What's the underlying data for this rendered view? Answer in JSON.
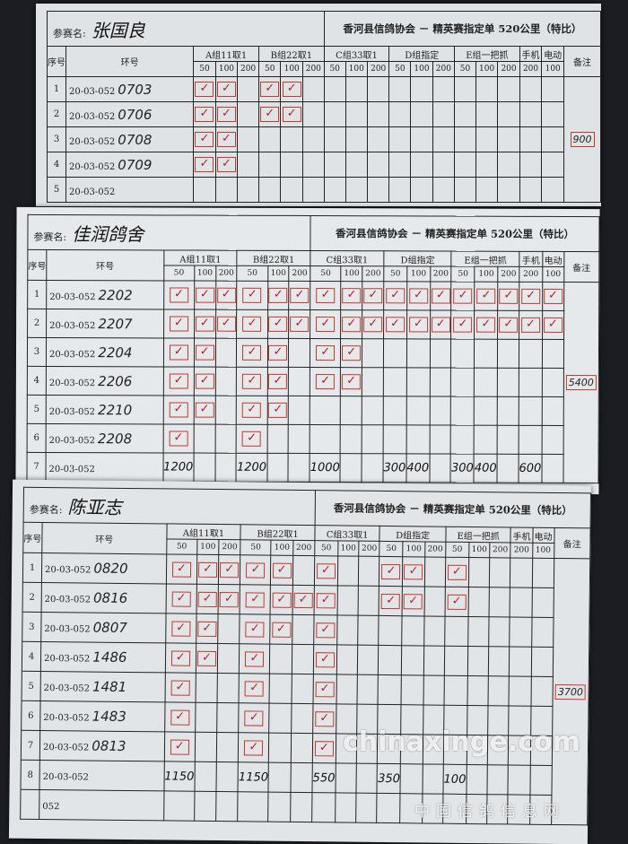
{
  "header": {
    "name_label": "参赛名:",
    "title": "香河县信鸽协会 － 精英赛指定单 520公里（特比）",
    "seq_label": "序号",
    "ring_label": "环号",
    "remark_label": "备注",
    "groups": [
      "A组11取1",
      "B组22取1",
      "C组33取1",
      "D组指定",
      "E组一把抓",
      "手机",
      "电动"
    ],
    "distances": [
      "50",
      "100",
      "200",
      "50",
      "100",
      "200",
      "50",
      "100",
      "200",
      "50",
      "100",
      "200",
      "50",
      "100",
      "200",
      "200",
      "100"
    ]
  },
  "mark_symbol": "✓",
  "mark_color": "#c0392b",
  "sheets": [
    {
      "participant": "张国良",
      "remark": "900",
      "rows": [
        {
          "seq": "1",
          "prefix": "20-03-052",
          "ring": "0703",
          "marks": [
            0,
            1,
            3,
            4
          ]
        },
        {
          "seq": "2",
          "prefix": "20-03-052",
          "ring": "0706",
          "marks": [
            0,
            1,
            3,
            4
          ]
        },
        {
          "seq": "3",
          "prefix": "20-03-052",
          "ring": "0708",
          "marks": [
            0,
            1
          ]
        },
        {
          "seq": "4",
          "prefix": "20-03-052",
          "ring": "0709",
          "marks": [
            0,
            1
          ]
        },
        {
          "seq": "5",
          "prefix": "20-03-052",
          "ring": "",
          "marks": []
        }
      ]
    },
    {
      "participant": "佳润鸽舍",
      "remark": "5400",
      "rows": [
        {
          "seq": "1",
          "prefix": "20-03-052",
          "ring": "2202",
          "marks": [
            0,
            1,
            2,
            3,
            4,
            5,
            6,
            7,
            8,
            9,
            10,
            11,
            12,
            13,
            14,
            15,
            16
          ]
        },
        {
          "seq": "2",
          "prefix": "20-03-052",
          "ring": "2207",
          "marks": [
            0,
            1,
            2,
            3,
            4,
            5,
            6,
            7,
            8,
            9,
            10,
            11,
            12,
            13,
            14,
            15,
            16
          ]
        },
        {
          "seq": "3",
          "prefix": "20-03-052",
          "ring": "2204",
          "marks": [
            0,
            1,
            3,
            4,
            6,
            7
          ]
        },
        {
          "seq": "4",
          "prefix": "20-03-052",
          "ring": "2206",
          "marks": [
            0,
            1,
            3,
            4,
            6,
            7
          ]
        },
        {
          "seq": "5",
          "prefix": "20-03-052",
          "ring": "2210",
          "marks": [
            0,
            1,
            3,
            4
          ]
        },
        {
          "seq": "6",
          "prefix": "20-03-052",
          "ring": "2208",
          "marks": [
            0,
            3
          ]
        },
        {
          "seq": "7",
          "prefix": "20-03-052",
          "ring": "",
          "marks": [],
          "totals": {
            "0": "1200",
            "3": "1200",
            "6": "1000",
            "9": "300",
            "10": "400",
            "12": "300",
            "13": "400",
            "15": "600"
          }
        }
      ]
    },
    {
      "participant": "陈亚志",
      "remark": "3700",
      "rows": [
        {
          "seq": "1",
          "prefix": "20-03-052",
          "ring": "0820",
          "marks": [
            0,
            1,
            2,
            3,
            4,
            6,
            9,
            10,
            12
          ]
        },
        {
          "seq": "2",
          "prefix": "20-03-052",
          "ring": "0816",
          "marks": [
            0,
            1,
            2,
            3,
            4,
            5,
            6,
            9,
            10,
            12
          ]
        },
        {
          "seq": "3",
          "prefix": "20-03-052",
          "ring": "0807",
          "marks": [
            0,
            1,
            3,
            4,
            6
          ]
        },
        {
          "seq": "4",
          "prefix": "20-03-052",
          "ring": "1486",
          "marks": [
            0,
            1,
            3,
            6
          ]
        },
        {
          "seq": "5",
          "prefix": "20-03-052",
          "ring": "1481",
          "marks": [
            0,
            3,
            6
          ]
        },
        {
          "seq": "6",
          "prefix": "20-03-052",
          "ring": "1483",
          "marks": [
            0,
            3,
            6
          ]
        },
        {
          "seq": "7",
          "prefix": "20-03-052",
          "ring": "0813",
          "marks": [
            0,
            3,
            6
          ]
        },
        {
          "seq": "8",
          "prefix": "20-03-052",
          "ring": "",
          "marks": [],
          "totals": {
            "0": "1150",
            "3": "1150",
            "6": "550",
            "9": "350",
            "12": "100"
          }
        },
        {
          "seq": "",
          "prefix": "052",
          "ring": "",
          "marks": []
        }
      ]
    }
  ],
  "watermark": {
    "domain": "chinaxinge.com",
    "site_name": "中国信鸽信息网"
  }
}
